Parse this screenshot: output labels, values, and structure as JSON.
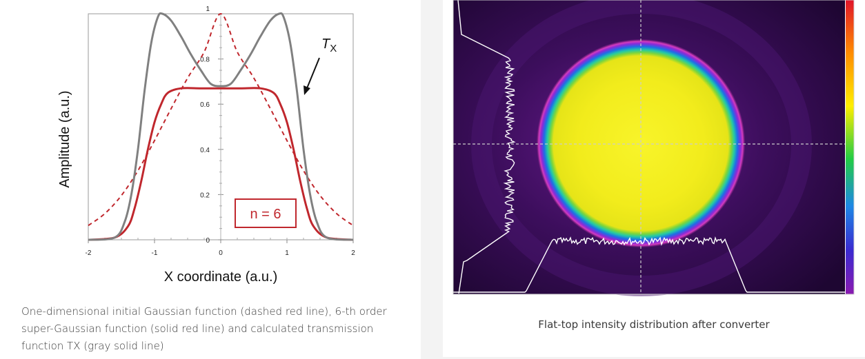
{
  "left_figure": {
    "chart_data": {
      "type": "line",
      "xlabel": "X coordinate (a.u.)",
      "ylabel": "Amplitude (a.u.)",
      "xlim": [
        -2,
        2
      ],
      "ylim": [
        0,
        1
      ],
      "x_ticks": [
        "-2",
        "-1",
        "0",
        "1",
        "2"
      ],
      "y_ticks": [
        "0",
        "0.2",
        "0.4",
        "0.6",
        "0.8",
        "1"
      ],
      "annotations": [
        {
          "text": "T",
          "subscript": "X",
          "target": "gray transmission curve"
        },
        {
          "text": "n = 6",
          "boxed": true
        }
      ],
      "series": [
        {
          "style": "dashed",
          "color": "#c0272d",
          "x": [
            -2,
            -1.75,
            -1.5,
            -1.25,
            -1,
            -0.75,
            -0.5,
            -0.25,
            0,
            0.25,
            0.5,
            0.75,
            1,
            1.25,
            1.5,
            1.75,
            2
          ],
          "y": [
            0.063,
            0.116,
            0.196,
            0.306,
            0.439,
            0.58,
            0.716,
            0.831,
            1.0,
            0.831,
            0.716,
            0.58,
            0.439,
            0.306,
            0.196,
            0.116,
            0.063
          ]
        },
        {
          "style": "solid",
          "color": "#c0272d",
          "x": [
            -2,
            -1.6,
            -1.4,
            -1.3,
            -1.2,
            -1.1,
            -1.0,
            -0.9,
            -0.8,
            -0.6,
            -0.3,
            0,
            0.3,
            0.6,
            0.8,
            0.9,
            1.0,
            1.1,
            1.2,
            1.3,
            1.4,
            1.6,
            2
          ],
          "y": [
            0,
            0.01,
            0.06,
            0.14,
            0.26,
            0.4,
            0.52,
            0.6,
            0.65,
            0.67,
            0.67,
            0.67,
            0.67,
            0.67,
            0.65,
            0.6,
            0.52,
            0.4,
            0.26,
            0.14,
            0.06,
            0.01,
            0
          ]
        },
        {
          "style": "solid",
          "color": "#808080",
          "x": [
            -2,
            -1.6,
            -1.45,
            -1.35,
            -1.25,
            -1.15,
            -1.05,
            -0.95,
            -0.88,
            -0.75,
            -0.6,
            -0.45,
            -0.3,
            -0.15,
            0,
            0.15,
            0.3,
            0.45,
            0.6,
            0.75,
            0.88,
            0.95,
            1.05,
            1.15,
            1.25,
            1.35,
            1.45,
            1.6,
            2
          ],
          "y": [
            0,
            0.01,
            0.08,
            0.2,
            0.4,
            0.66,
            0.87,
            0.985,
            1.0,
            0.97,
            0.9,
            0.82,
            0.75,
            0.69,
            0.68,
            0.69,
            0.75,
            0.82,
            0.9,
            0.97,
            1.0,
            0.985,
            0.87,
            0.66,
            0.4,
            0.2,
            0.08,
            0.01,
            0
          ]
        }
      ]
    },
    "caption": "One-dimensional initial Gaussian function (dashed red line), 6-th order super-Gaussian function (solid red line) and calculated transmission function TX (gray solid line)"
  },
  "right_figure": {
    "caption": "Flat-top intensity distribution after converter",
    "colors": {
      "background": "#2a0a44",
      "spot_center": "#f4f021",
      "ring": [
        "#2ec8a0",
        "#1e6ee6",
        "#9b2fd6",
        "#e040b0"
      ],
      "profile_line": "#ffffff",
      "colorbar": [
        "#e0142a",
        "#ff8c00",
        "#ffee00",
        "#22cc44",
        "#1e88e5",
        "#3a2ad0",
        "#8a1ab0"
      ]
    }
  }
}
